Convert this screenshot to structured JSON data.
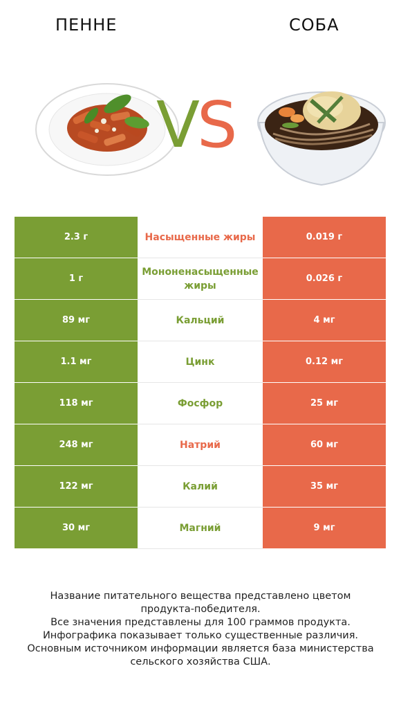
{
  "header": {
    "left_title": "ПЕННЕ",
    "right_title": "СОБА",
    "vs_v": "V",
    "vs_s": "S"
  },
  "colors": {
    "left_accent": "#7a9e34",
    "right_accent": "#e8694a"
  },
  "rows": [
    {
      "left": "2.3 г",
      "label": "Насыщенные жиры",
      "right": "0.019 г",
      "winner": "right"
    },
    {
      "left": "1 г",
      "label": "Мононенасыщенные жиры",
      "right": "0.026 г",
      "winner": "left"
    },
    {
      "left": "89 мг",
      "label": "Кальций",
      "right": "4 мг",
      "winner": "left"
    },
    {
      "left": "1.1 мг",
      "label": "Цинк",
      "right": "0.12 мг",
      "winner": "left"
    },
    {
      "left": "118 мг",
      "label": "Фосфор",
      "right": "25 мг",
      "winner": "left"
    },
    {
      "left": "248 мг",
      "label": "Натрий",
      "right": "60 мг",
      "winner": "right"
    },
    {
      "left": "122 мг",
      "label": "Калий",
      "right": "35 мг",
      "winner": "left"
    },
    {
      "left": "30 мг",
      "label": "Магний",
      "right": "9 мг",
      "winner": "left"
    }
  ],
  "footer": {
    "line1": "Название питательного вещества представлено цветом",
    "line2": "продукта-победителя.",
    "line3": "Все значения представлены для 100 граммов продукта.",
    "line4": "Инфографика показывает только существенные различия.",
    "line5": "Основным источником информации является база министерства",
    "line6": "сельского хозяйства США."
  }
}
